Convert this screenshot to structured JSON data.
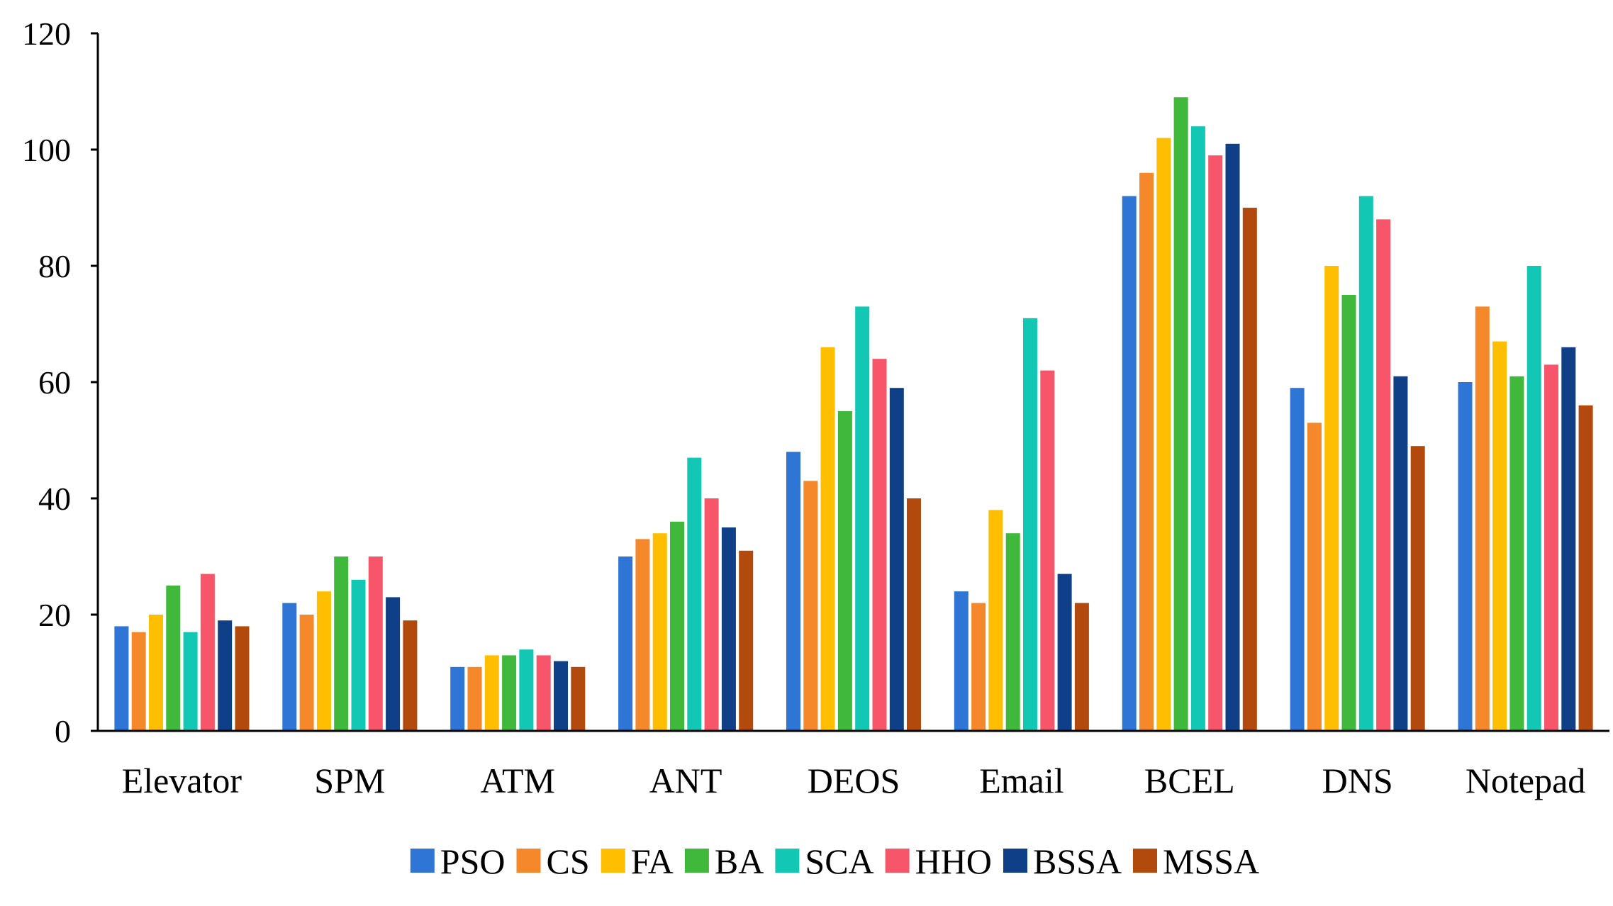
{
  "chart_data": {
    "type": "bar",
    "title": "",
    "xlabel": "",
    "ylabel": "",
    "ylim": [
      0,
      120
    ],
    "yticks": [
      0,
      20,
      40,
      60,
      80,
      100,
      120
    ],
    "grid": false,
    "legend_position": "bottom",
    "categories": [
      "Elevator",
      "SPM",
      "ATM",
      "ANT",
      "DEOS",
      "Email",
      "BCEL",
      "DNS",
      "Notepad"
    ],
    "series": [
      {
        "name": "PSO",
        "color": "#2e75d6",
        "values": [
          18,
          22,
          11,
          30,
          48,
          24,
          92,
          59,
          60
        ]
      },
      {
        "name": "CS",
        "color": "#f5882a",
        "values": [
          17,
          20,
          11,
          33,
          43,
          22,
          96,
          53,
          73
        ]
      },
      {
        "name": "FA",
        "color": "#ffbf00",
        "values": [
          20,
          24,
          13,
          34,
          66,
          38,
          102,
          80,
          67
        ]
      },
      {
        "name": "BA",
        "color": "#3fb83c",
        "values": [
          25,
          30,
          13,
          36,
          55,
          34,
          109,
          75,
          61
        ]
      },
      {
        "name": "SCA",
        "color": "#12c7b4",
        "values": [
          17,
          26,
          14,
          47,
          73,
          71,
          104,
          92,
          80
        ]
      },
      {
        "name": "HHO",
        "color": "#f7566a",
        "values": [
          27,
          30,
          13,
          40,
          64,
          62,
          99,
          88,
          63
        ]
      },
      {
        "name": "BSSA",
        "color": "#0f3f86",
        "values": [
          19,
          23,
          12,
          35,
          59,
          27,
          101,
          61,
          66
        ]
      },
      {
        "name": "MSSA",
        "color": "#b34a0d",
        "values": [
          18,
          19,
          11,
          31,
          40,
          22,
          90,
          49,
          56
        ]
      }
    ]
  }
}
